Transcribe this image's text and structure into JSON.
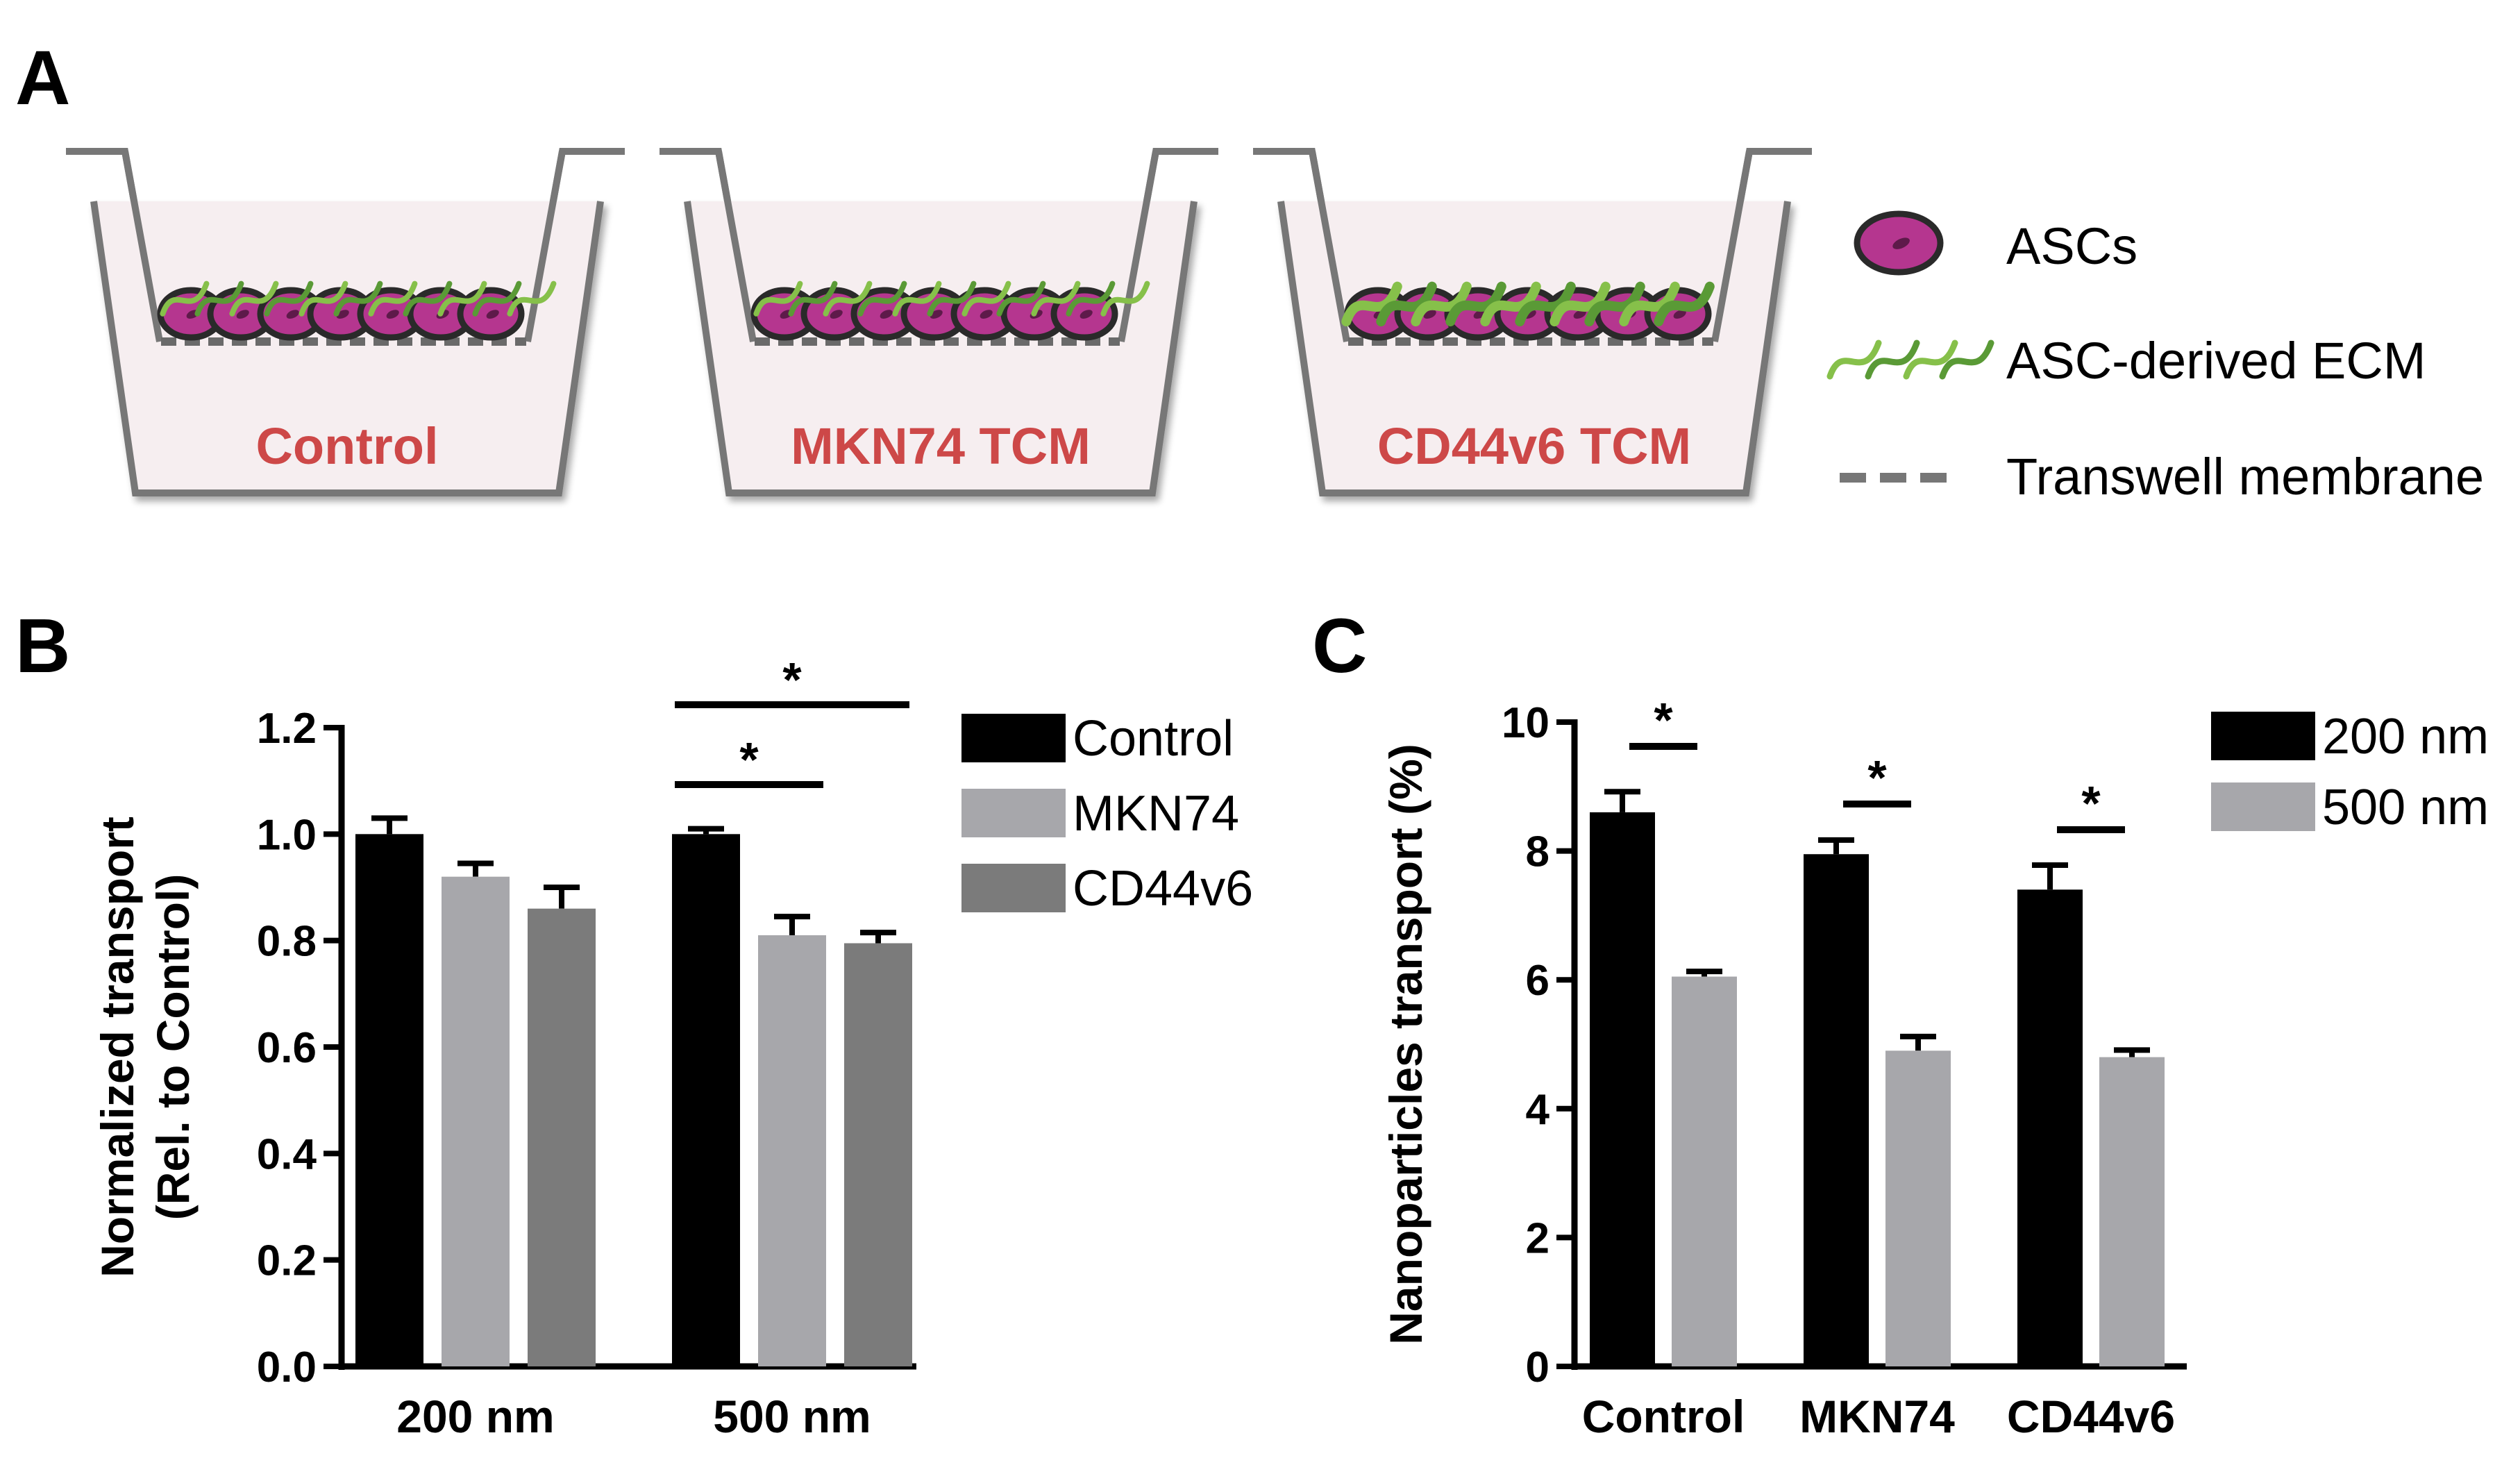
{
  "panels": {
    "a": {
      "letter": "A"
    },
    "b": {
      "letter": "B"
    },
    "c": {
      "letter": "C"
    }
  },
  "schematic": {
    "wells": [
      {
        "label": "Control",
        "ecm_level": 1
      },
      {
        "label": "MKN74 TCM",
        "ecm_level": 1
      },
      {
        "label": "CD44v6 TCM",
        "ecm_level": 2
      }
    ],
    "legend": {
      "ascs": "ASCs",
      "ecm": "ASC-derived ECM",
      "membrane": "Transwell membrane"
    },
    "colors": {
      "cell_fill": "#b5368f",
      "cell_nucleus": "#5e1a4a",
      "ecm": "#86c04a",
      "ecm_dark": "#5a9a36",
      "well": "#777777",
      "well_fill": "#f6eef0",
      "label": "#cd4848"
    }
  },
  "chart_data": [
    {
      "type": "bar",
      "panel": "B",
      "categories": [
        "200 nm",
        "500 nm"
      ],
      "series": [
        {
          "name": "Control",
          "values": [
            1.0,
            1.0
          ],
          "errors": [
            0.03,
            0.01
          ],
          "color": "#000000"
        },
        {
          "name": "MKN74",
          "values": [
            0.92,
            0.81
          ],
          "errors": [
            0.025,
            0.035
          ],
          "color": "#a7a7ab"
        },
        {
          "name": "CD44v6",
          "values": [
            0.86,
            0.795
          ],
          "errors": [
            0.04,
            0.02
          ],
          "color": "#7b7b7b"
        }
      ],
      "ylabel_line1": "Normalized transport",
      "ylabel_line2": "(Rel. to Control)",
      "ylim": [
        0,
        1.2
      ],
      "yticks": [
        "0.0",
        "0.2",
        "0.4",
        "0.6",
        "0.8",
        "1.0",
        "1.2"
      ],
      "legend_position": "top-right",
      "significance": [
        {
          "category": 1,
          "from_series": 0,
          "to_series": 1,
          "label": "*"
        },
        {
          "category": 1,
          "from_series": 0,
          "to_series": 2,
          "label": "*"
        }
      ]
    },
    {
      "type": "bar",
      "panel": "C",
      "categories": [
        "Control",
        "MKN74",
        "CD44v6"
      ],
      "series": [
        {
          "name": "200 nm",
          "values": [
            8.6,
            7.95,
            7.4
          ],
          "errors": [
            0.32,
            0.22,
            0.38
          ],
          "color": "#000000"
        },
        {
          "name": "500 nm",
          "values": [
            6.05,
            4.9,
            4.8
          ],
          "errors": [
            0.08,
            0.22,
            0.11
          ],
          "color": "#a7a7ab"
        }
      ],
      "ylabel": "Nanoparticles transport (%)",
      "ylim": [
        0,
        10
      ],
      "yticks": [
        "0",
        "2",
        "4",
        "6",
        "8",
        "10"
      ],
      "legend_position": "top-right",
      "significance": [
        {
          "category": 0,
          "label": "*"
        },
        {
          "category": 1,
          "label": "*"
        },
        {
          "category": 2,
          "label": "*"
        }
      ]
    }
  ]
}
